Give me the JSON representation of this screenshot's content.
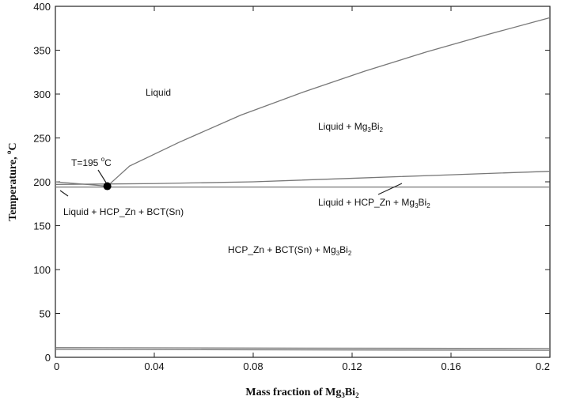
{
  "chart_data": {
    "type": "line",
    "xlim": [
      0,
      0.2
    ],
    "ylim": [
      0,
      400
    ],
    "x_ticks": [
      "0",
      "0.04",
      "0.08",
      "0.12",
      "0.16",
      "0.2"
    ],
    "y_ticks": [
      "0",
      "50",
      "100",
      "150",
      "200",
      "250",
      "300",
      "350",
      "400"
    ],
    "xlabel": {
      "main": "Mass fraction of Mg",
      "sub1": "3",
      "mid": "Bi",
      "sub2": "2"
    },
    "ylabel": {
      "main": "Temperature, ",
      "sup": "o",
      "tail": "C"
    },
    "series": [
      {
        "points": [
          [
            0.0,
            200
          ],
          [
            0.021,
            195
          ]
        ]
      },
      {
        "points": [
          [
            0.021,
            195
          ],
          [
            0.03,
            218
          ],
          [
            0.05,
            245
          ],
          [
            0.075,
            276
          ],
          [
            0.1,
            302
          ],
          [
            0.125,
            326
          ],
          [
            0.15,
            348
          ],
          [
            0.175,
            368
          ],
          [
            0.2,
            387
          ]
        ]
      },
      {
        "points": [
          [
            0.0,
            197
          ],
          [
            0.04,
            198
          ],
          [
            0.08,
            200
          ],
          [
            0.12,
            204
          ],
          [
            0.16,
            208
          ],
          [
            0.2,
            212
          ]
        ]
      },
      {
        "points": [
          [
            0.0,
            194
          ],
          [
            0.2,
            194
          ]
        ]
      },
      {
        "points": [
          [
            0.0,
            11
          ],
          [
            0.2,
            10
          ]
        ]
      },
      {
        "points": [
          [
            0.0,
            9
          ],
          [
            0.2,
            8
          ]
        ]
      }
    ],
    "marker": {
      "x": 0.021,
      "y": 195
    },
    "annotations": {
      "liquid": "Liquid",
      "liquid_mg3bi2": {
        "main": "Liquid + Mg",
        "sub1": "3",
        "mid": "Bi",
        "sub2": "2"
      },
      "eutectic": {
        "main": "T=195 ",
        "sup": "o",
        "tail": "C"
      },
      "liquid_hcp_bct": "Liquid + HCP_Zn + BCT(Sn)",
      "liquid_hcp_mg3bi2": {
        "main": "Liquid + HCP_Zn + Mg",
        "sub1": "3",
        "mid": "Bi",
        "sub2": "2"
      },
      "solid": {
        "main": "HCP_Zn + BCT(Sn) +  Mg",
        "sub1": "3",
        "mid": "Bi",
        "sub2": "2"
      }
    },
    "grid": false
  }
}
